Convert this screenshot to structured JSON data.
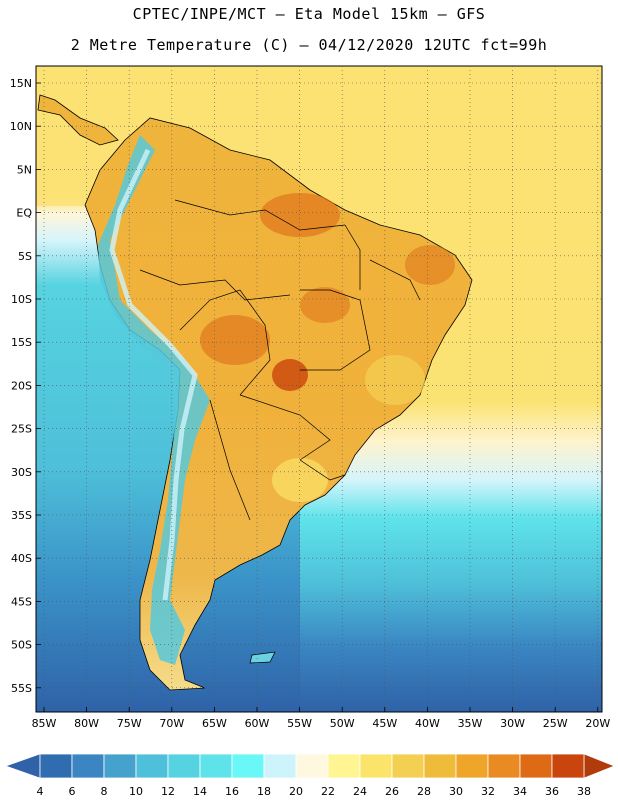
{
  "header": {
    "title_line1": "CPTEC/INPE/MCT –  Eta Model 15km – GFS",
    "title_line2": "2 Metre Temperature (C) – 04/12/2020 12UTC fct=99h"
  },
  "map": {
    "lat_labels": [
      "15N",
      "10N",
      "5N",
      "EQ",
      "5S",
      "10S",
      "15S",
      "20S",
      "25S",
      "30S",
      "35S",
      "40S",
      "45S",
      "50S",
      "55S"
    ],
    "lon_labels": [
      "85W",
      "80W",
      "75W",
      "70W",
      "65W",
      "60W",
      "55W",
      "50W",
      "45W",
      "40W",
      "35W",
      "30W",
      "25W",
      "20W"
    ]
  },
  "colorbar": {
    "labels": [
      "4",
      "6",
      "8",
      "10",
      "12",
      "14",
      "16",
      "18",
      "20",
      "22",
      "24",
      "26",
      "28",
      "30",
      "32",
      "34",
      "36",
      "38"
    ],
    "colors": [
      "#2f6cb0",
      "#3a85c2",
      "#45a2cc",
      "#4ec0d9",
      "#56d3e0",
      "#5fe3ea",
      "#6af7f7",
      "#cdf3fb",
      "#fff8e0",
      "#fff592",
      "#fce36a",
      "#f4d052",
      "#efbb3a",
      "#efa42a",
      "#ea8a22",
      "#df6a16",
      "#c9450d"
    ],
    "low_color": "#2f62a8",
    "high_color": "#b13b0a"
  }
}
